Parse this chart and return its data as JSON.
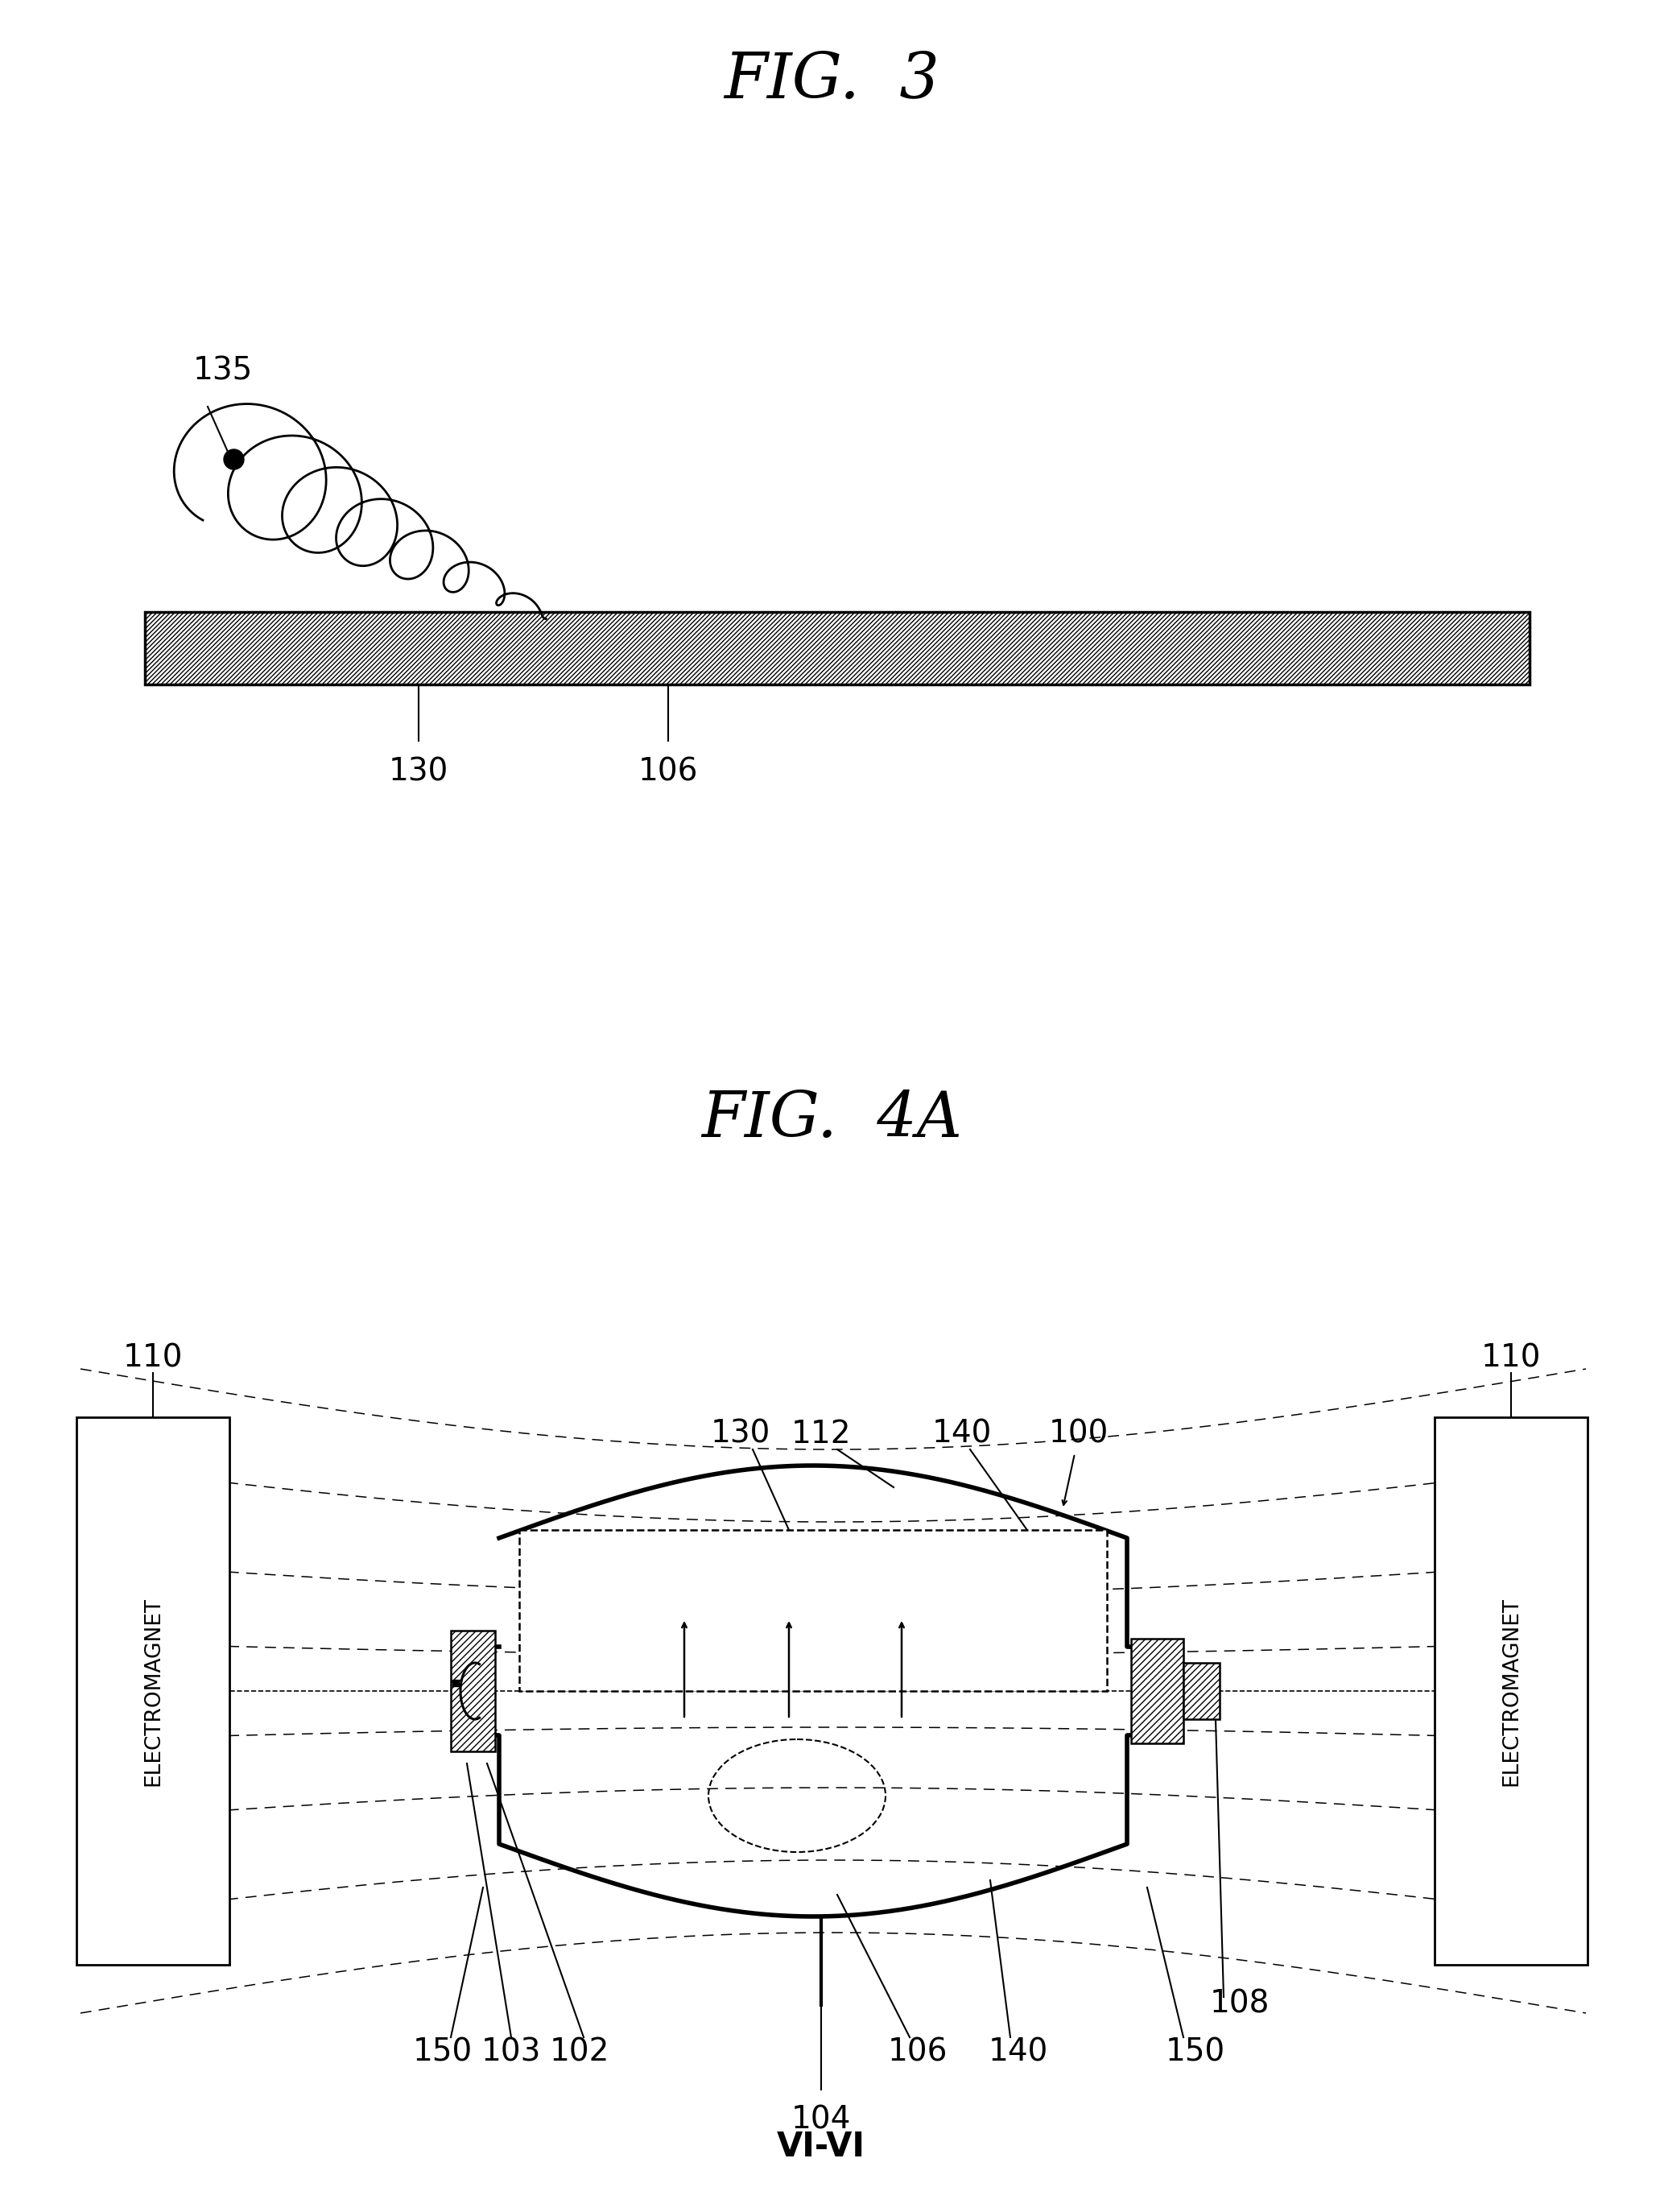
{
  "fig3_title": "FIG.  3",
  "fig4a_title": "FIG.  4A",
  "background_color": "#ffffff",
  "label_135": "135",
  "label_130_fig3": "130",
  "label_106_fig3": "106",
  "label_110_left": "110",
  "label_110_right": "110",
  "label_130_fig4a": "130",
  "label_112": "112",
  "label_140_top": "140",
  "label_100": "100",
  "label_150_left": "150",
  "label_103": "103",
  "label_102": "102",
  "label_104": "104",
  "label_106_fig4a": "106",
  "label_140_bot": "140",
  "label_150_right": "150",
  "label_108": "108",
  "label_vivi": "VI-VI",
  "electromagnet_text": "ELECTROMAGNET"
}
